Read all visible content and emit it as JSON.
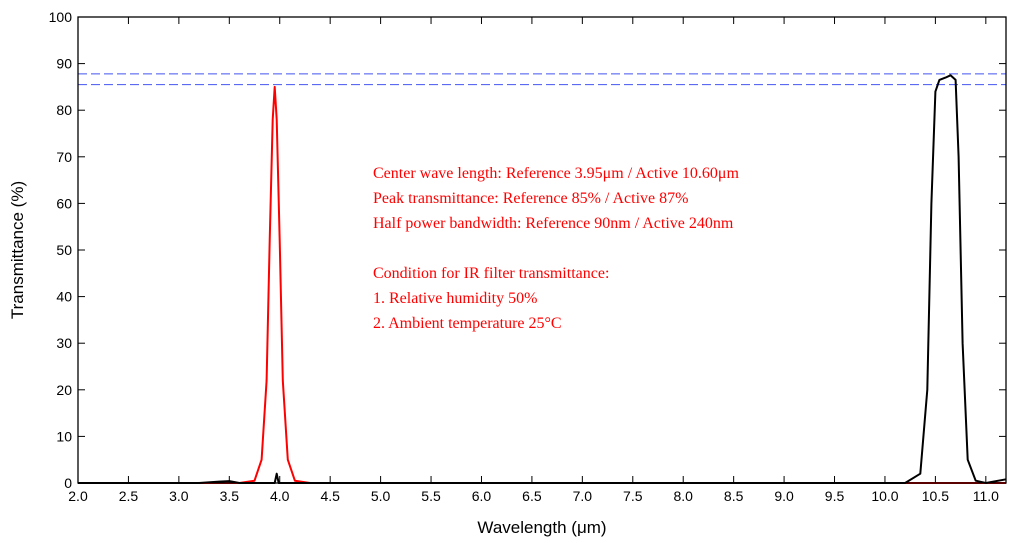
{
  "chart_data": {
    "type": "line",
    "xlabel": "Wavelength (μm)",
    "ylabel": "Transmittance (%)",
    "xlim": [
      2.0,
      11.2
    ],
    "ylim": [
      0,
      100
    ],
    "xticks": [
      "2.0",
      "2.5",
      "3.0",
      "3.5",
      "4.0",
      "4.5",
      "5.0",
      "5.5",
      "6.0",
      "6.5",
      "7.0",
      "7.5",
      "8.0",
      "8.5",
      "9.0",
      "9.5",
      "10.0",
      "10.5",
      "11.0"
    ],
    "yticks": [
      "0",
      "10",
      "20",
      "30",
      "40",
      "50",
      "60",
      "70",
      "80",
      "90",
      "100"
    ],
    "grid": false,
    "series": [
      {
        "color": "#ff0000",
        "x": [
          2.0,
          3.6,
          3.75,
          3.82,
          3.87,
          3.9,
          3.93,
          3.95,
          3.97,
          4.0,
          4.03,
          4.08,
          4.15,
          4.3,
          11.2
        ],
        "y": [
          0,
          0,
          0.5,
          5,
          22,
          52,
          78,
          85,
          78,
          52,
          22,
          5,
          0.5,
          0,
          0
        ]
      },
      {
        "color": "#000000",
        "x": [
          2.0,
          3.2,
          3.4,
          3.5,
          3.6,
          3.95,
          3.97,
          3.99,
          4.05,
          4.3,
          10.2,
          10.35,
          10.42,
          10.46,
          10.5,
          10.54,
          10.6,
          10.65,
          10.7,
          10.73,
          10.77,
          10.82,
          10.9,
          11.0,
          11.2
        ],
        "y": [
          0,
          0,
          0.3,
          0.4,
          0,
          0,
          2,
          0,
          0,
          0,
          0,
          2,
          20,
          60,
          84,
          86.5,
          87,
          87.5,
          86.5,
          70,
          30,
          5,
          0.5,
          0,
          0.8
        ]
      }
    ],
    "reference_lines": [
      {
        "y": 85.5,
        "color": "#4455ee",
        "style": "dashed"
      },
      {
        "y": 87.8,
        "color": "#4455ee",
        "style": "dashed"
      }
    ],
    "annotations": [
      "Center wave length: Reference 3.95μm / Active 10.60μm",
      "Peak transmittance: Reference 85% / Active 87%",
      "Half power bandwidth: Reference 90nm / Active 240nm",
      "Condition for IR filter transmittance:",
      "1. Relative humidity 50%",
      "2. Ambient temperature 25°C"
    ]
  }
}
